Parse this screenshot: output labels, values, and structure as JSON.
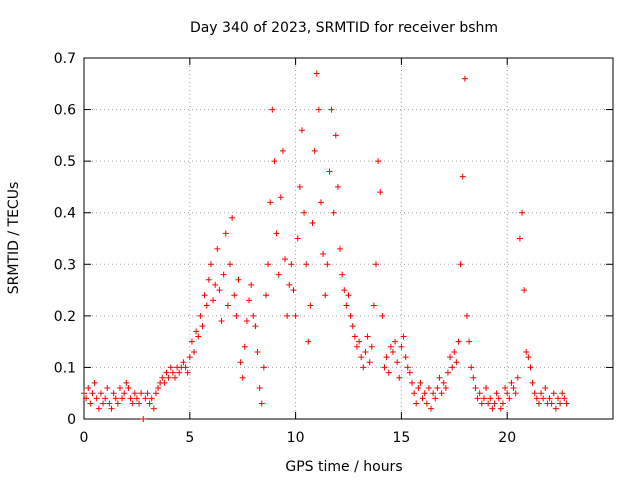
{
  "chart_data": {
    "type": "scatter",
    "title": "Day 340 of 2023, SRMTID for receiver bshm",
    "xlabel": "GPS time / hours",
    "ylabel": "SRMTID / TECUs",
    "xlim": [
      0,
      25
    ],
    "ylim": [
      0,
      0.7
    ],
    "xticks": [
      0,
      5,
      10,
      15,
      20
    ],
    "yticks": [
      0,
      0.1,
      0.2,
      0.3,
      0.4,
      0.5,
      0.6,
      0.7
    ],
    "grid": true,
    "marker": "+",
    "color": "#ff0000",
    "series": [
      {
        "name": "SRMTID",
        "points": [
          [
            0.0,
            0.05
          ],
          [
            0.1,
            0.04
          ],
          [
            0.2,
            0.06
          ],
          [
            0.3,
            0.03
          ],
          [
            0.4,
            0.05
          ],
          [
            0.5,
            0.07
          ],
          [
            0.6,
            0.04
          ],
          [
            0.7,
            0.02
          ],
          [
            0.8,
            0.05
          ],
          [
            0.9,
            0.03
          ],
          [
            1.0,
            0.04
          ],
          [
            1.1,
            0.06
          ],
          [
            1.2,
            0.03
          ],
          [
            1.3,
            0.02
          ],
          [
            1.4,
            0.05
          ],
          [
            1.5,
            0.04
          ],
          [
            1.6,
            0.03
          ],
          [
            1.7,
            0.06
          ],
          [
            1.8,
            0.04
          ],
          [
            1.9,
            0.05
          ],
          [
            2.0,
            0.07
          ],
          [
            2.1,
            0.06
          ],
          [
            2.2,
            0.04
          ],
          [
            2.3,
            0.03
          ],
          [
            2.4,
            0.05
          ],
          [
            2.5,
            0.04
          ],
          [
            2.6,
            0.03
          ],
          [
            2.7,
            0.05
          ],
          [
            2.8,
            0.0
          ],
          [
            2.9,
            0.04
          ],
          [
            3.0,
            0.05
          ],
          [
            3.1,
            0.03
          ],
          [
            3.2,
            0.04
          ],
          [
            3.3,
            0.02
          ],
          [
            3.4,
            0.05
          ],
          [
            3.5,
            0.06
          ],
          [
            3.6,
            0.07
          ],
          [
            3.7,
            0.08
          ],
          [
            3.8,
            0.07
          ],
          [
            3.9,
            0.09
          ],
          [
            4.0,
            0.08
          ],
          [
            4.1,
            0.1
          ],
          [
            4.2,
            0.09
          ],
          [
            4.3,
            0.08
          ],
          [
            4.4,
            0.1
          ],
          [
            4.5,
            0.09
          ],
          [
            4.6,
            0.1
          ],
          [
            4.7,
            0.11
          ],
          [
            4.8,
            0.1
          ],
          [
            4.9,
            0.09
          ],
          [
            5.0,
            0.12
          ],
          [
            5.1,
            0.15
          ],
          [
            5.2,
            0.13
          ],
          [
            5.3,
            0.17
          ],
          [
            5.4,
            0.16
          ],
          [
            5.5,
            0.2
          ],
          [
            5.6,
            0.18
          ],
          [
            5.7,
            0.24
          ],
          [
            5.8,
            0.22
          ],
          [
            5.9,
            0.27
          ],
          [
            6.0,
            0.3
          ],
          [
            6.1,
            0.23
          ],
          [
            6.2,
            0.26
          ],
          [
            6.3,
            0.33
          ],
          [
            6.4,
            0.25
          ],
          [
            6.5,
            0.19
          ],
          [
            6.6,
            0.28
          ],
          [
            6.7,
            0.36
          ],
          [
            6.8,
            0.22
          ],
          [
            6.9,
            0.3
          ],
          [
            7.0,
            0.39
          ],
          [
            7.1,
            0.24
          ],
          [
            7.2,
            0.2
          ],
          [
            7.3,
            0.27
          ],
          [
            7.4,
            0.11
          ],
          [
            7.5,
            0.08
          ],
          [
            7.6,
            0.14
          ],
          [
            7.7,
            0.19
          ],
          [
            7.8,
            0.23
          ],
          [
            7.9,
            0.26
          ],
          [
            8.0,
            0.2
          ],
          [
            8.1,
            0.18
          ],
          [
            8.2,
            0.13
          ],
          [
            8.3,
            0.06
          ],
          [
            8.4,
            0.03
          ],
          [
            8.5,
            0.1
          ],
          [
            8.6,
            0.24
          ],
          [
            8.7,
            0.3
          ],
          [
            8.8,
            0.42
          ],
          [
            8.9,
            0.6
          ],
          [
            9.0,
            0.5
          ],
          [
            9.1,
            0.36
          ],
          [
            9.2,
            0.28
          ],
          [
            9.3,
            0.43
          ],
          [
            9.4,
            0.52
          ],
          [
            9.5,
            0.31
          ],
          [
            9.6,
            0.2
          ],
          [
            9.7,
            0.26
          ],
          [
            9.8,
            0.3
          ],
          [
            9.9,
            0.25
          ],
          [
            10.0,
            0.2
          ],
          [
            10.1,
            0.35
          ],
          [
            10.2,
            0.45
          ],
          [
            10.3,
            0.56
          ],
          [
            10.4,
            0.4
          ],
          [
            10.5,
            0.3
          ],
          [
            10.6,
            0.15
          ],
          [
            10.7,
            0.22
          ],
          [
            10.8,
            0.38
          ],
          [
            10.9,
            0.52
          ],
          [
            11.0,
            0.67
          ],
          [
            11.1,
            0.6
          ],
          [
            11.2,
            0.42
          ],
          [
            11.3,
            0.32
          ],
          [
            11.4,
            0.24
          ],
          [
            11.5,
            0.3
          ],
          [
            11.6,
            0.48
          ],
          [
            11.7,
            0.6
          ],
          [
            11.8,
            0.4
          ],
          [
            11.9,
            0.55
          ],
          [
            12.0,
            0.45
          ],
          [
            12.1,
            0.33
          ],
          [
            12.2,
            0.28
          ],
          [
            12.3,
            0.25
          ],
          [
            12.4,
            0.22
          ],
          [
            12.5,
            0.24
          ],
          [
            12.6,
            0.2
          ],
          [
            12.7,
            0.18
          ],
          [
            12.8,
            0.16
          ],
          [
            12.9,
            0.14
          ],
          [
            13.0,
            0.15
          ],
          [
            13.1,
            0.12
          ],
          [
            13.2,
            0.1
          ],
          [
            13.3,
            0.13
          ],
          [
            13.4,
            0.16
          ],
          [
            13.5,
            0.11
          ],
          [
            13.6,
            0.14
          ],
          [
            13.7,
            0.22
          ],
          [
            13.8,
            0.3
          ],
          [
            13.9,
            0.5
          ],
          [
            14.0,
            0.44
          ],
          [
            14.1,
            0.2
          ],
          [
            14.2,
            0.1
          ],
          [
            14.3,
            0.12
          ],
          [
            14.4,
            0.09
          ],
          [
            14.5,
            0.14
          ],
          [
            14.6,
            0.13
          ],
          [
            14.7,
            0.15
          ],
          [
            14.8,
            0.11
          ],
          [
            14.9,
            0.08
          ],
          [
            15.0,
            0.14
          ],
          [
            15.1,
            0.16
          ],
          [
            15.2,
            0.12
          ],
          [
            15.3,
            0.1
          ],
          [
            15.4,
            0.09
          ],
          [
            15.5,
            0.07
          ],
          [
            15.6,
            0.05
          ],
          [
            15.7,
            0.03
          ],
          [
            15.8,
            0.06
          ],
          [
            15.9,
            0.07
          ],
          [
            16.0,
            0.04
          ],
          [
            16.1,
            0.05
          ],
          [
            16.2,
            0.03
          ],
          [
            16.3,
            0.06
          ],
          [
            16.4,
            0.02
          ],
          [
            16.5,
            0.05
          ],
          [
            16.6,
            0.04
          ],
          [
            16.7,
            0.06
          ],
          [
            16.8,
            0.08
          ],
          [
            16.9,
            0.05
          ],
          [
            17.0,
            0.07
          ],
          [
            17.1,
            0.06
          ],
          [
            17.2,
            0.09
          ],
          [
            17.3,
            0.12
          ],
          [
            17.4,
            0.1
          ],
          [
            17.5,
            0.13
          ],
          [
            17.6,
            0.11
          ],
          [
            17.7,
            0.15
          ],
          [
            17.8,
            0.3
          ],
          [
            17.9,
            0.47
          ],
          [
            18.0,
            0.66
          ],
          [
            18.1,
            0.2
          ],
          [
            18.2,
            0.15
          ],
          [
            18.3,
            0.1
          ],
          [
            18.4,
            0.08
          ],
          [
            18.5,
            0.06
          ],
          [
            18.6,
            0.04
          ],
          [
            18.7,
            0.05
          ],
          [
            18.8,
            0.03
          ],
          [
            18.9,
            0.04
          ],
          [
            19.0,
            0.06
          ],
          [
            19.1,
            0.03
          ],
          [
            19.2,
            0.04
          ],
          [
            19.3,
            0.02
          ],
          [
            19.4,
            0.03
          ],
          [
            19.5,
            0.05
          ],
          [
            19.6,
            0.04
          ],
          [
            19.7,
            0.02
          ],
          [
            19.8,
            0.03
          ],
          [
            19.9,
            0.06
          ],
          [
            20.0,
            0.05
          ],
          [
            20.1,
            0.04
          ],
          [
            20.2,
            0.07
          ],
          [
            20.3,
            0.06
          ],
          [
            20.4,
            0.05
          ],
          [
            20.5,
            0.08
          ],
          [
            20.6,
            0.35
          ],
          [
            20.7,
            0.4
          ],
          [
            20.8,
            0.25
          ],
          [
            20.9,
            0.13
          ],
          [
            21.0,
            0.12
          ],
          [
            21.1,
            0.1
          ],
          [
            21.2,
            0.07
          ],
          [
            21.3,
            0.05
          ],
          [
            21.4,
            0.04
          ],
          [
            21.5,
            0.03
          ],
          [
            21.6,
            0.05
          ],
          [
            21.7,
            0.04
          ],
          [
            21.8,
            0.06
          ],
          [
            21.9,
            0.03
          ],
          [
            22.0,
            0.04
          ],
          [
            22.1,
            0.03
          ],
          [
            22.2,
            0.05
          ],
          [
            22.3,
            0.02
          ],
          [
            22.4,
            0.04
          ],
          [
            22.5,
            0.03
          ],
          [
            22.6,
            0.05
          ],
          [
            22.7,
            0.04
          ],
          [
            22.8,
            0.03
          ]
        ]
      }
    ]
  }
}
